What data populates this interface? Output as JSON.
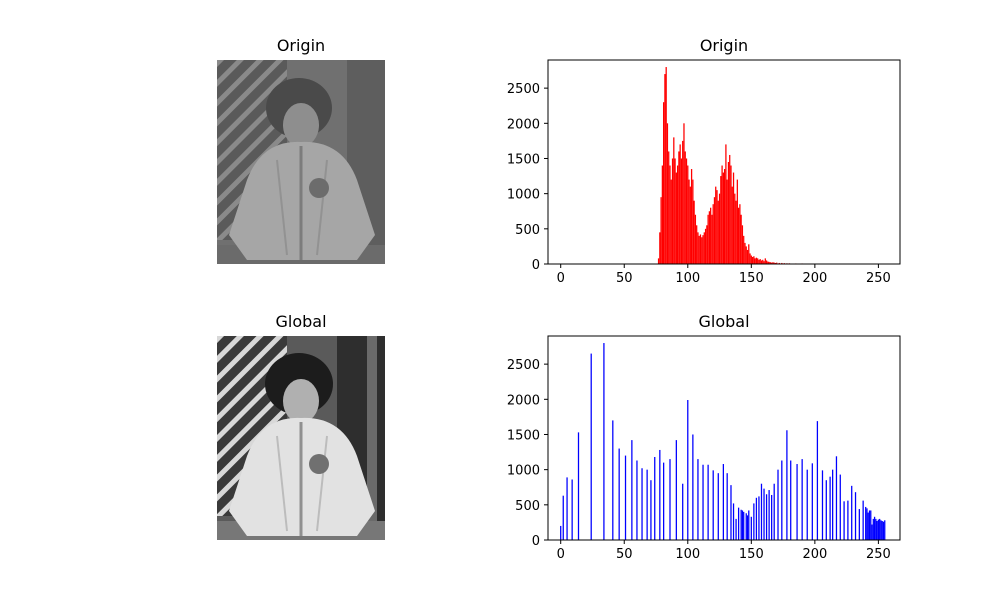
{
  "panels": {
    "origin_image_title": "Origin",
    "global_image_title": "Global"
  },
  "chart_data": [
    {
      "type": "bar",
      "title": "Origin",
      "xlabel": "",
      "ylabel": "",
      "color": "#ff0000",
      "xlim": [
        -10,
        267
      ],
      "ylim": [
        0,
        2900
      ],
      "xticks": [
        0,
        50,
        100,
        150,
        200,
        250
      ],
      "yticks": [
        0,
        500,
        1000,
        1500,
        2000,
        2500
      ],
      "x": [
        77,
        78,
        79,
        80,
        81,
        82,
        83,
        84,
        85,
        86,
        87,
        88,
        89,
        90,
        91,
        92,
        93,
        94,
        95,
        96,
        97,
        98,
        99,
        100,
        101,
        102,
        103,
        104,
        105,
        106,
        107,
        108,
        109,
        110,
        111,
        112,
        113,
        114,
        115,
        116,
        117,
        118,
        119,
        120,
        121,
        122,
        123,
        124,
        125,
        126,
        127,
        128,
        129,
        130,
        131,
        132,
        133,
        134,
        135,
        136,
        137,
        138,
        139,
        140,
        141,
        142,
        143,
        144,
        145,
        146,
        147,
        148,
        149,
        150,
        151,
        152,
        153,
        154,
        155,
        156,
        157,
        158,
        159,
        160,
        161,
        162,
        163,
        164,
        165,
        166,
        167,
        168,
        169,
        170,
        172,
        174,
        176,
        178,
        180,
        185,
        190,
        195,
        200,
        205,
        210,
        215,
        220
      ],
      "values": [
        80,
        450,
        950,
        1400,
        2300,
        2700,
        2800,
        2000,
        1600,
        1400,
        1200,
        1500,
        1800,
        1500,
        1300,
        1400,
        1600,
        1700,
        1500,
        1750,
        2000,
        1600,
        1500,
        1400,
        1200,
        1100,
        1350,
        1200,
        900,
        700,
        550,
        450,
        400,
        420,
        380,
        410,
        450,
        500,
        550,
        700,
        750,
        800,
        700,
        850,
        950,
        1100,
        1050,
        900,
        1000,
        1250,
        1400,
        1300,
        1350,
        1700,
        1200,
        1450,
        1550,
        1400,
        1100,
        1300,
        1000,
        900,
        1200,
        800,
        850,
        700,
        550,
        400,
        300,
        250,
        200,
        280,
        150,
        120,
        100,
        110,
        80,
        90,
        80,
        60,
        70,
        50,
        60,
        40,
        80,
        50,
        35,
        30,
        25,
        20,
        25,
        20,
        15,
        20,
        15,
        15,
        12,
        10,
        10,
        8,
        8,
        6,
        5,
        5,
        4,
        3,
        2
      ]
    },
    {
      "type": "bar",
      "title": "Global",
      "xlabel": "",
      "ylabel": "",
      "color": "#0000ff",
      "xlim": [
        -10,
        267
      ],
      "ylim": [
        0,
        2900
      ],
      "xticks": [
        0,
        50,
        100,
        150,
        200,
        250
      ],
      "yticks": [
        0,
        500,
        1000,
        1500,
        2000,
        2500
      ],
      "x": [
        0,
        2,
        5,
        9,
        14,
        24,
        34,
        41,
        46,
        51,
        56,
        60,
        64,
        68,
        71,
        74,
        78,
        81,
        86,
        91,
        96,
        100,
        104,
        108,
        112,
        116,
        120,
        124,
        128,
        131,
        134,
        136,
        138,
        140,
        142,
        143,
        144,
        146,
        147,
        148,
        150,
        152,
        154,
        156,
        158,
        160,
        162,
        164,
        166,
        168,
        171,
        174,
        178,
        181,
        186,
        190,
        194,
        198,
        202,
        206,
        209,
        212,
        214,
        217,
        220,
        223,
        226,
        229,
        232,
        235,
        238,
        240,
        241,
        242,
        243,
        244,
        245,
        246,
        247,
        248,
        249,
        250,
        251,
        252,
        253,
        254,
        255
      ],
      "values": [
        200,
        630,
        890,
        860,
        1530,
        2650,
        2800,
        1700,
        1300,
        1200,
        1420,
        1130,
        1020,
        1000,
        850,
        1180,
        1280,
        1100,
        1150,
        1420,
        800,
        1990,
        1500,
        1150,
        1070,
        1070,
        990,
        950,
        1080,
        950,
        780,
        520,
        300,
        460,
        430,
        420,
        400,
        380,
        350,
        420,
        330,
        520,
        600,
        620,
        800,
        730,
        650,
        710,
        640,
        800,
        1000,
        1130,
        1560,
        1130,
        1080,
        1150,
        1000,
        1090,
        1690,
        990,
        850,
        900,
        1000,
        1190,
        930,
        550,
        560,
        770,
        680,
        440,
        560,
        470,
        450,
        390,
        420,
        420,
        220,
        300,
        330,
        300,
        270,
        290,
        300,
        280,
        270,
        260,
        280
      ]
    }
  ]
}
